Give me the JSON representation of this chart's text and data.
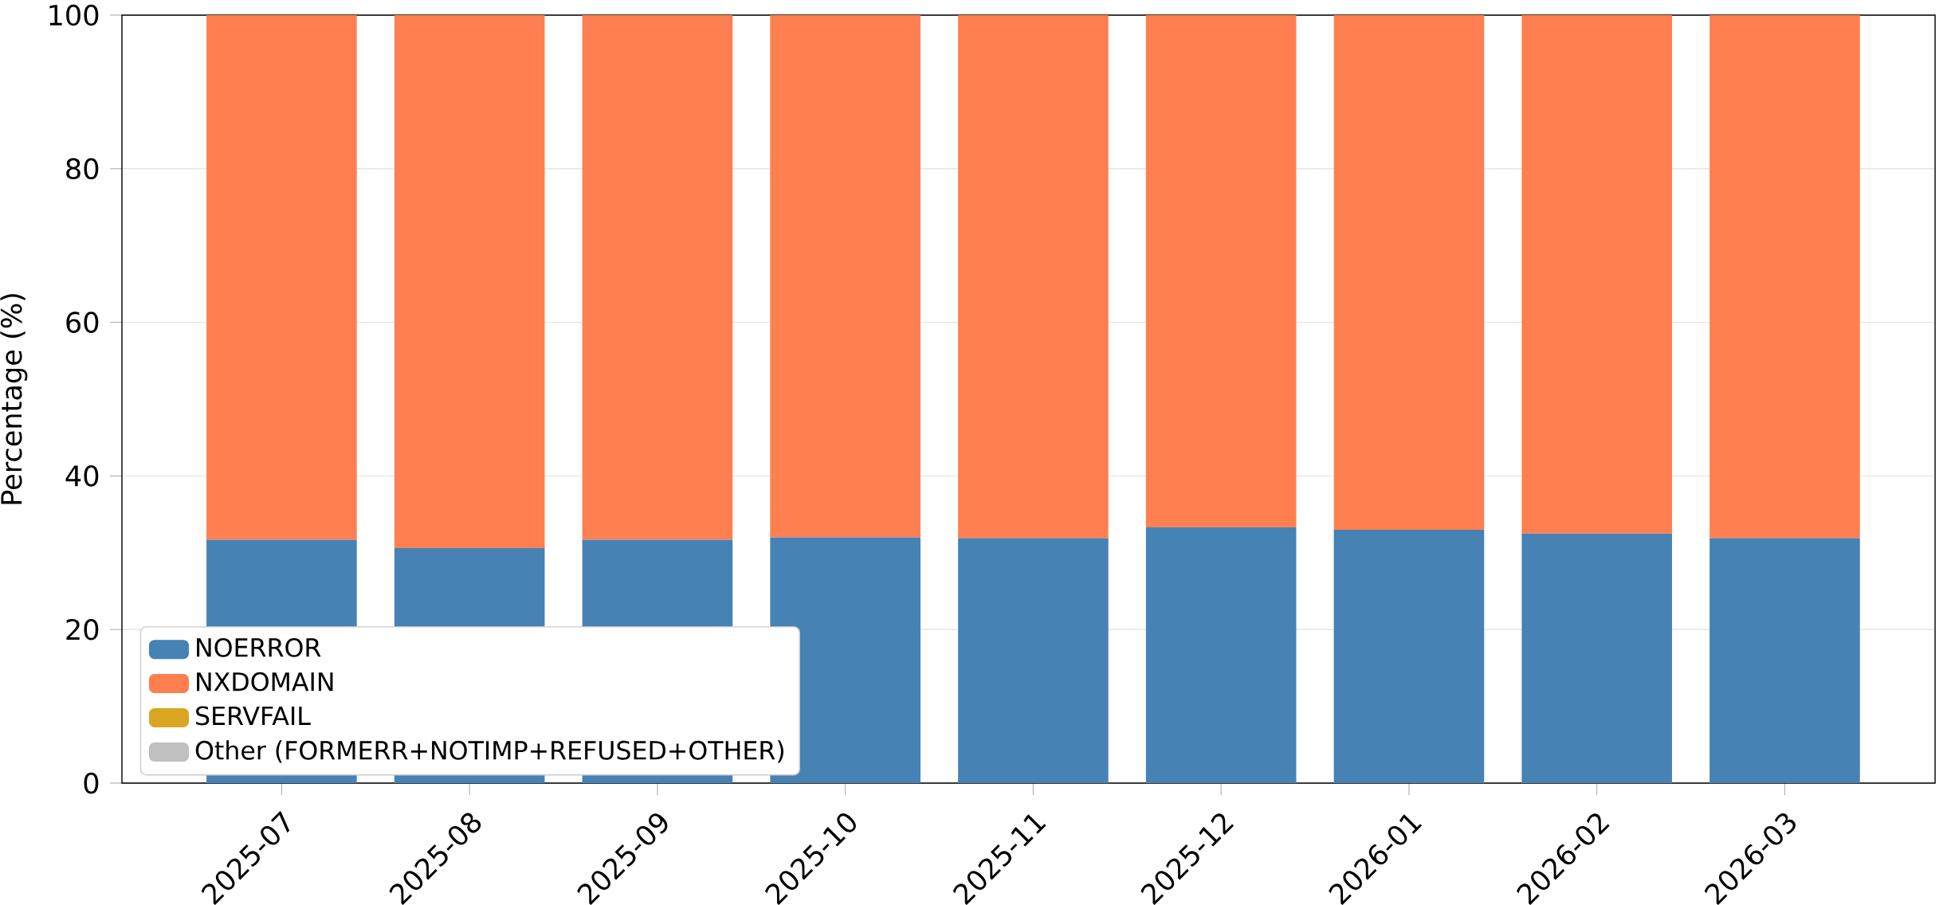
{
  "chart_data": {
    "type": "bar",
    "stacked": true,
    "ylabel": "Percentage (%)",
    "categories": [
      "2025-07",
      "2025-08",
      "2025-09",
      "2025-10",
      "2025-11",
      "2025-12",
      "2026-01",
      "2026-02",
      "2026-03"
    ],
    "series": [
      {
        "name": "NOERROR",
        "color": "#4682b4",
        "values": [
          31.7,
          30.6,
          31.7,
          32.0,
          31.9,
          33.3,
          33.0,
          32.5,
          31.9
        ]
      },
      {
        "name": "NXDOMAIN",
        "color": "#ff7f50",
        "values": [
          68.3,
          69.4,
          68.3,
          68.0,
          68.1,
          66.7,
          67.0,
          67.5,
          68.1
        ]
      },
      {
        "name": "SERVFAIL",
        "color": "#daa520",
        "values": [
          0,
          0,
          0,
          0,
          0,
          0,
          0,
          0,
          0
        ]
      },
      {
        "name": "Other (FORMERR+NOTIMP+REFUSED+OTHER)",
        "color": "#c0c0c0",
        "values": [
          0,
          0,
          0,
          0,
          0,
          0,
          0,
          0,
          0
        ]
      }
    ],
    "ylim": [
      0,
      100
    ],
    "yticks": [
      0,
      20,
      40,
      60,
      80,
      100
    ],
    "grid": "y",
    "legend": "bottom left"
  }
}
